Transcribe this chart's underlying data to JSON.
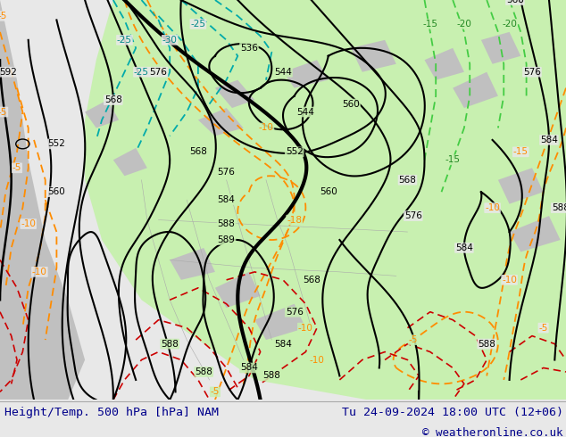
{
  "footer_left": "Height/Temp. 500 hPa [hPa] NAM",
  "footer_right": "Tu 24-09-2024 18:00 UTC (12+06)",
  "footer_copyright": "© weatheronline.co.uk",
  "bg_color": "#e8e8e8",
  "map_bg_color": "#e8e8e8",
  "green_color": "#c8f0b0",
  "gray_land_color": "#c0c0c0",
  "footer_text_color": "#00008b",
  "footer_font_size": 9.5,
  "fig_width": 6.34,
  "fig_height": 4.9,
  "dpi": 100
}
